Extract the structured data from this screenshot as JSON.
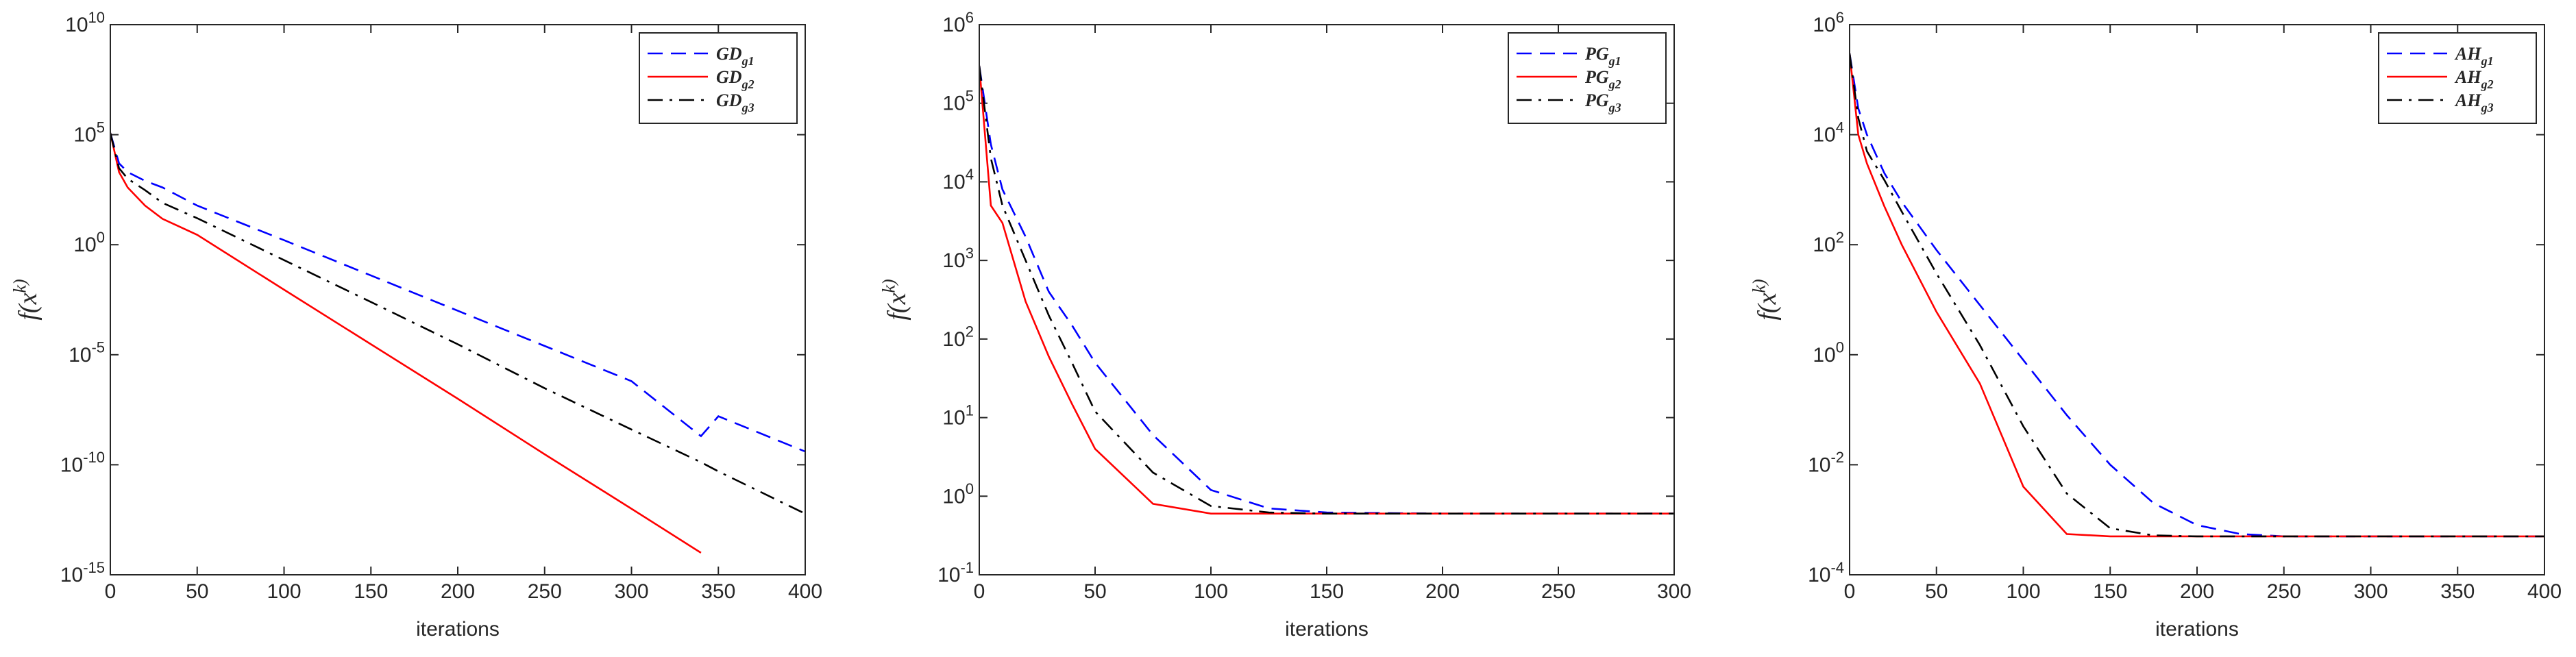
{
  "chart_data": [
    {
      "type": "line",
      "xlabel": "iterations",
      "ylabel": "f(x^k)",
      "log_y": true,
      "legend": "upper right",
      "xlim": [
        0,
        400
      ],
      "xticks": [
        0,
        50,
        100,
        150,
        200,
        250,
        300,
        350,
        400
      ],
      "ylim": [
        1e-15,
        10000000000.0
      ],
      "yticks": [
        {
          "value": 1e-15,
          "label": "10^-15"
        },
        {
          "value": 1e-10,
          "label": "10^-10"
        },
        {
          "value": 1e-05,
          "label": "10^-5"
        },
        {
          "value": 1,
          "label": "10^0"
        },
        {
          "value": 100000.0,
          "label": "10^5"
        },
        {
          "value": 10000000000.0,
          "label": "10^10"
        }
      ],
      "x": [
        0,
        5,
        10,
        20,
        30,
        50,
        100,
        150,
        200,
        250,
        300,
        340,
        350,
        400
      ],
      "series": [
        {
          "name": "GD_g1",
          "color": "#0000ff",
          "line_style": "dashed",
          "values": [
            120000,
            5000,
            2000,
            800,
            400,
            60,
            1.6,
            0.04,
            0.001,
            2.5e-05,
            6.3e-07,
            2e-09,
            1.6e-08,
            4e-10
          ]
        },
        {
          "name": "GD_g2",
          "color": "#ff0000",
          "line_style": "solid",
          "values": [
            120000,
            2000,
            400,
            60,
            15,
            2.8,
            0.009,
            3e-05,
            1e-07,
            3e-10,
            1e-12,
            1e-14,
            null,
            null
          ]
        },
        {
          "name": "GD_g3",
          "color": "#000000",
          "line_style": "dashdot",
          "values": [
            120000,
            3000,
            1000,
            300,
            80,
            16,
            0.2,
            0.0025,
            3e-05,
            3e-07,
            4e-09,
            1.3e-10,
            5e-11,
            6e-13
          ]
        }
      ]
    },
    {
      "type": "line",
      "xlabel": "iterations",
      "ylabel": "f(x^k)",
      "log_y": true,
      "legend": "upper right",
      "xlim": [
        0,
        300
      ],
      "xticks": [
        0,
        50,
        100,
        150,
        200,
        250,
        300
      ],
      "ylim": [
        0.1,
        1000000.0
      ],
      "yticks": [
        {
          "value": 0.1,
          "label": "10^-1"
        },
        {
          "value": 1,
          "label": "10^0"
        },
        {
          "value": 10,
          "label": "10^1"
        },
        {
          "value": 100,
          "label": "10^2"
        },
        {
          "value": 1000,
          "label": "10^3"
        },
        {
          "value": 10000,
          "label": "10^4"
        },
        {
          "value": 100000,
          "label": "10^5"
        },
        {
          "value": 1000000,
          "label": "10^6"
        }
      ],
      "x": [
        0,
        5,
        10,
        20,
        30,
        40,
        50,
        75,
        100,
        125,
        150,
        200,
        250,
        300
      ],
      "series": [
        {
          "name": "PG_g1",
          "color": "#0000ff",
          "line_style": "dashed",
          "values": [
            300000,
            30000,
            8000,
            2000,
            400,
            150,
            50,
            6,
            1.2,
            0.7,
            0.62,
            0.6,
            0.6,
            0.6
          ]
        },
        {
          "name": "PG_g2",
          "color": "#ff0000",
          "line_style": "solid",
          "values": [
            300000,
            5000,
            3000,
            300,
            60,
            15,
            4,
            0.8,
            0.6,
            0.6,
            0.6,
            0.6,
            0.6,
            0.6
          ]
        },
        {
          "name": "PG_g3",
          "color": "#000000",
          "line_style": "dashdot",
          "values": [
            300000,
            20000,
            5000,
            1000,
            200,
            50,
            12,
            2,
            0.75,
            0.62,
            0.6,
            0.6,
            0.6,
            0.6
          ]
        }
      ]
    },
    {
      "type": "line",
      "xlabel": "iterations",
      "ylabel": "f(x^k)",
      "log_y": true,
      "legend": "upper right",
      "xlim": [
        0,
        400
      ],
      "xticks": [
        0,
        50,
        100,
        150,
        200,
        250,
        300,
        350,
        400
      ],
      "ylim": [
        0.0001,
        1000000.0
      ],
      "yticks": [
        {
          "value": 0.0001,
          "label": "10^-4"
        },
        {
          "value": 0.01,
          "label": "10^-2"
        },
        {
          "value": 1,
          "label": "10^0"
        },
        {
          "value": 100,
          "label": "10^2"
        },
        {
          "value": 10000,
          "label": "10^4"
        },
        {
          "value": 1000000,
          "label": "10^6"
        }
      ],
      "x": [
        0,
        5,
        10,
        20,
        30,
        50,
        75,
        100,
        125,
        150,
        175,
        200,
        225,
        250,
        300,
        350,
        400
      ],
      "series": [
        {
          "name": "AH_g1",
          "color": "#0000ff",
          "line_style": "dashed",
          "values": [
            300000,
            30000,
            10000,
            2000,
            600,
            80,
            8,
            0.8,
            0.08,
            0.01,
            0.002,
            0.0008,
            0.00055,
            0.0005,
            0.0005,
            0.0005,
            0.0005
          ]
        },
        {
          "name": "AH_g2",
          "color": "#ff0000",
          "line_style": "solid",
          "values": [
            300000,
            10000,
            3000,
            500,
            100,
            6,
            0.3,
            0.004,
            0.00055,
            0.0005,
            0.0005,
            0.0005,
            0.0005,
            0.0005,
            0.0005,
            0.0005,
            0.0005
          ]
        },
        {
          "name": "AH_g3",
          "color": "#000000",
          "line_style": "dashdot",
          "values": [
            300000,
            20000,
            5000,
            1500,
            400,
            30,
            1.5,
            0.05,
            0.003,
            0.0007,
            0.00052,
            0.0005,
            0.0005,
            0.0005,
            0.0005,
            0.0005,
            0.0005
          ]
        }
      ]
    }
  ]
}
